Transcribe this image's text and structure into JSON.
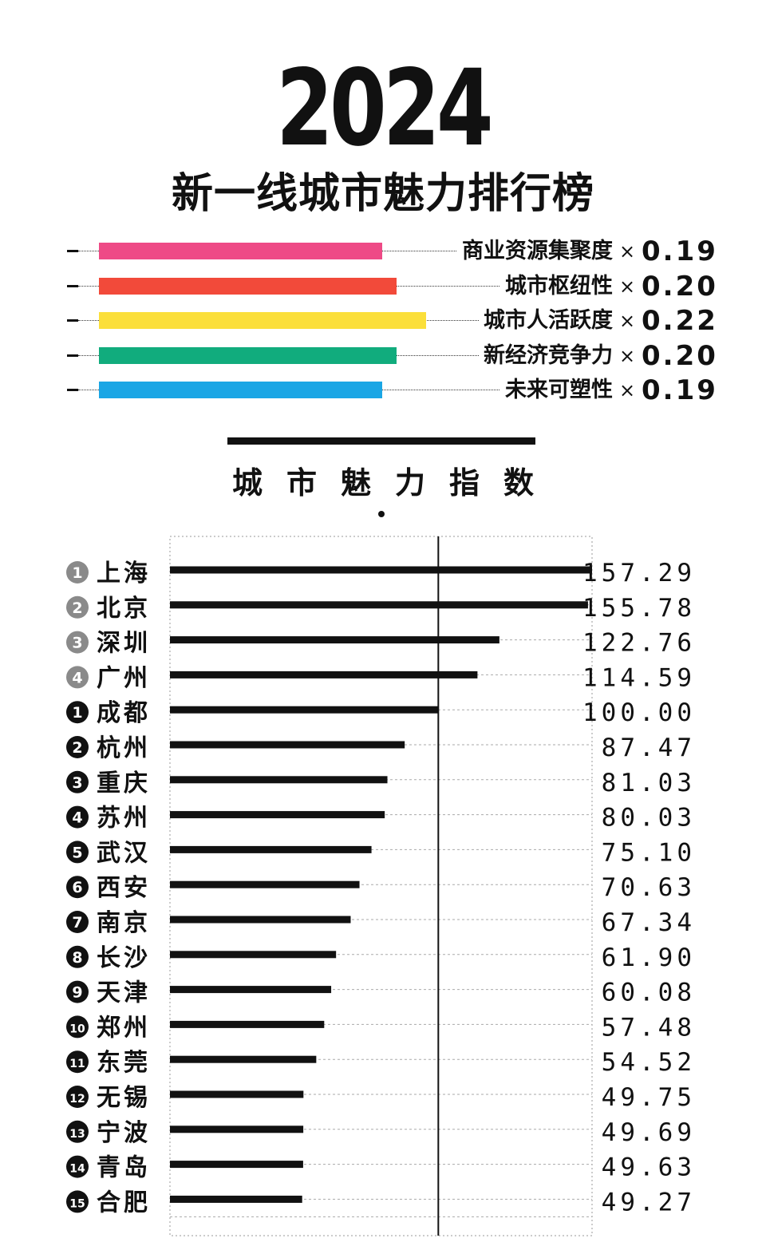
{
  "header": {
    "year": "2024",
    "title": "新一线城市魅力排行榜"
  },
  "weights": [
    {
      "label": "商业资源集聚度",
      "times": "×",
      "value": "0.19",
      "color": "#EE4A86"
    },
    {
      "label": "城市枢纽性",
      "times": "×",
      "value": "0.20",
      "color": "#F24A3A"
    },
    {
      "label": "城市人活跃度",
      "times": "×",
      "value": "0.22",
      "color": "#FBDF3A"
    },
    {
      "label": "新经济竞争力",
      "times": "×",
      "value": "0.20",
      "color": "#11AC7D"
    },
    {
      "label": "未来可塑性",
      "times": "×",
      "value": "0.19",
      "color": "#1AA6E5"
    }
  ],
  "section": {
    "title": "城市魅力指数"
  },
  "chart_data": {
    "type": "bar",
    "orientation": "horizontal",
    "reference_value": 100,
    "xlim": [
      0,
      157.29
    ],
    "grid": true,
    "categories": [
      "上海",
      "北京",
      "深圳",
      "广州",
      "成都",
      "杭州",
      "重庆",
      "苏州",
      "武汉",
      "西安",
      "南京",
      "长沙",
      "天津",
      "郑州",
      "东莞",
      "无锡",
      "宁波",
      "青岛",
      "合肥"
    ],
    "rank_labels": [
      "1",
      "2",
      "3",
      "4",
      "1",
      "2",
      "3",
      "4",
      "5",
      "6",
      "7",
      "8",
      "9",
      "10",
      "11",
      "12",
      "13",
      "14",
      "15"
    ],
    "rank_group": [
      "first-tier",
      "first-tier",
      "first-tier",
      "first-tier",
      "new-first-tier",
      "new-first-tier",
      "new-first-tier",
      "new-first-tier",
      "new-first-tier",
      "new-first-tier",
      "new-first-tier",
      "new-first-tier",
      "new-first-tier",
      "new-first-tier",
      "new-first-tier",
      "new-first-tier",
      "new-first-tier",
      "new-first-tier",
      "new-first-tier"
    ],
    "value_labels": [
      "157.29",
      "155.78",
      "122.76",
      "114.59",
      "100.00",
      "87.47",
      "81.03",
      "80.03",
      "75.10",
      "70.63",
      "67.34",
      "61.90",
      "60.08",
      "57.48",
      "54.52",
      "49.75",
      "49.69",
      "49.63",
      "49.27"
    ],
    "values": [
      157.29,
      155.78,
      122.76,
      114.59,
      100.0,
      87.47,
      81.03,
      80.03,
      75.1,
      70.63,
      67.34,
      61.9,
      60.08,
      57.48,
      54.52,
      49.75,
      49.69,
      49.63,
      49.27
    ],
    "colors": {
      "bar": "#111111",
      "badge_first_tier": "#8A8A8A",
      "badge_new_first_tier": "#111111"
    }
  }
}
